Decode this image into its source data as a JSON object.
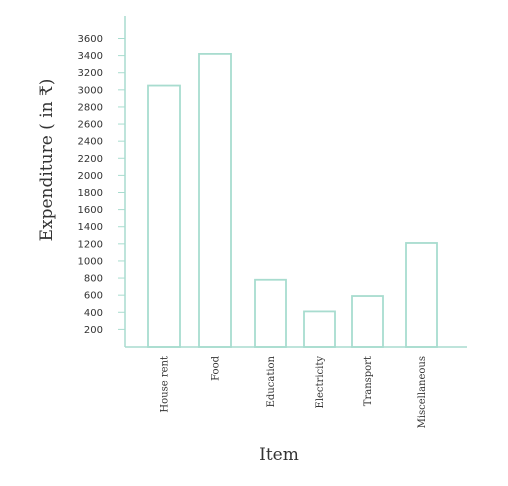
{
  "chart_data": {
    "type": "bar",
    "title": "",
    "xlabel": "Item",
    "ylabel": "Expenditure ( in ₹)",
    "categories": [
      "House rent",
      "Food",
      "Education",
      "Electricity",
      "Transport",
      "Miscellaneous"
    ],
    "values": [
      3050,
      3420,
      780,
      410,
      590,
      1210
    ],
    "yticks": [
      "200",
      "400",
      "600",
      "800",
      "1000",
      "1200",
      "1400",
      "1600",
      "1800",
      "2000",
      "2200",
      "2400",
      "2600",
      "2800",
      "3000",
      "3200",
      "3400",
      "3600"
    ],
    "ylim": [
      0,
      3800
    ],
    "grid": false,
    "colors": {
      "bar_stroke": "#a8dccf",
      "axis": "#a8dccf"
    }
  }
}
